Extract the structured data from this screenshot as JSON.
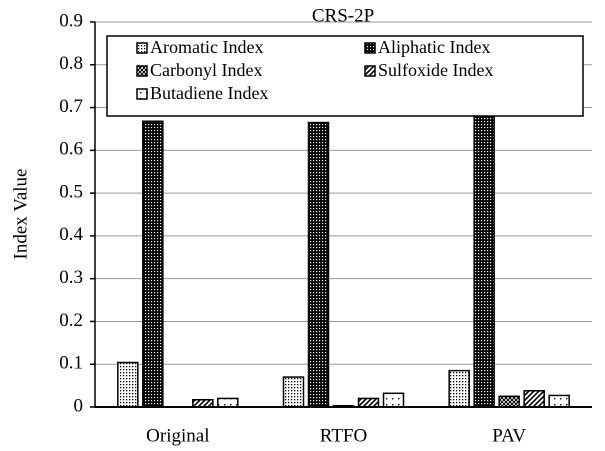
{
  "chart_data": {
    "type": "bar",
    "title": "CRS-2P",
    "y_label": "Index Value",
    "categories": [
      "Original",
      "RTFO",
      "PAV"
    ],
    "series": [
      {
        "name": "Aromatic Index",
        "color": "#000000",
        "pattern": "dots",
        "values": [
          0.104,
          0.07,
          0.085
        ]
      },
      {
        "name": "Aliphatic Index",
        "color": "#000000",
        "pattern": "dense",
        "values": [
          0.668,
          0.665,
          0.682
        ]
      },
      {
        "name": "Carbonyl Index",
        "color": "#000000",
        "pattern": "cross",
        "values": [
          0,
          0.003,
          0.025
        ]
      },
      {
        "name": "Sulfoxide Index",
        "color": "#000000",
        "pattern": "diag",
        "values": [
          0.017,
          0.02,
          0.038
        ]
      },
      {
        "name": "Butadiene Index",
        "color": "#000000",
        "pattern": "sparse",
        "values": [
          0.02,
          0.032,
          0.027
        ]
      }
    ],
    "ylim": [
      0,
      0.9
    ],
    "yticks": [
      0,
      0.1,
      0.2,
      0.3,
      0.4,
      0.5,
      0.6,
      0.7,
      0.8,
      0.9
    ],
    "grid": true,
    "legend": "top"
  }
}
